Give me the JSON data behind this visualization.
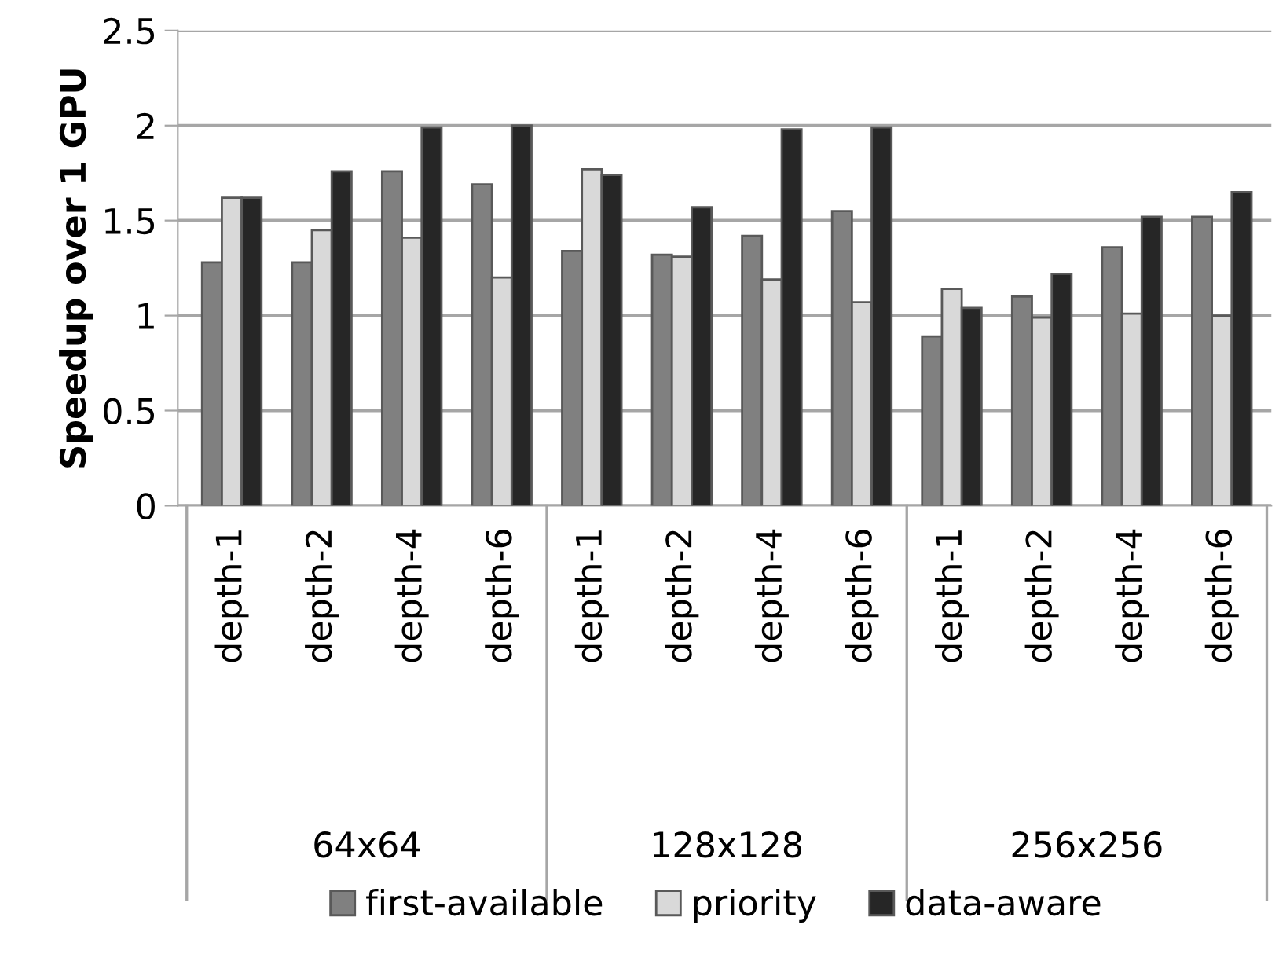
{
  "chart_data": {
    "type": "bar",
    "ylabel": "Speedup over 1 GPU",
    "categories": [
      "depth-1",
      "depth-2",
      "depth-4",
      "depth-6",
      "depth-1",
      "depth-2",
      "depth-4",
      "depth-6",
      "depth-1",
      "depth-2",
      "depth-4",
      "depth-6"
    ],
    "annotations": [
      "64x64",
      "128x128",
      "256x256"
    ],
    "series": [
      {
        "name": "first-available",
        "color": "#808080",
        "values": [
          1.28,
          1.28,
          1.76,
          1.69,
          1.34,
          1.32,
          1.42,
          1.55,
          0.89,
          1.1,
          1.36,
          1.52
        ]
      },
      {
        "name": "priority",
        "color": "#d9d9d9",
        "values": [
          1.62,
          1.45,
          1.41,
          1.2,
          1.77,
          1.31,
          1.19,
          1.07,
          1.14,
          0.99,
          1.01,
          1.0
        ]
      },
      {
        "name": "data-aware",
        "color": "#262626",
        "values": [
          1.62,
          1.76,
          1.99,
          2.0,
          1.74,
          1.57,
          1.98,
          1.99,
          1.04,
          1.22,
          1.52,
          1.65
        ]
      }
    ],
    "ylim": [
      0,
      2.5
    ],
    "yticks": [
      0,
      0.5,
      1,
      1.5,
      2,
      2.5
    ],
    "grid": "y",
    "legend": "bottom"
  }
}
